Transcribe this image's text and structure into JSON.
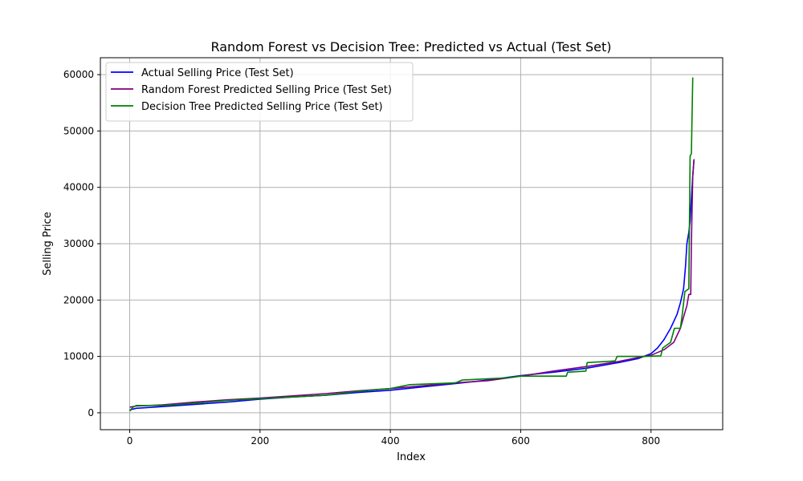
{
  "chart_data": {
    "type": "line",
    "title": "Random Forest vs Decision Tree: Predicted vs Actual (Test Set)",
    "xlabel": "Index",
    "ylabel": "Selling Price",
    "xlim": [
      -45,
      910
    ],
    "ylim": [
      -3000,
      63000
    ],
    "x_ticks": [
      0,
      200,
      400,
      600,
      800
    ],
    "y_ticks": [
      0,
      10000,
      20000,
      30000,
      40000,
      50000,
      60000
    ],
    "grid": true,
    "legend_position": "top-left",
    "series": [
      {
        "name": "Actual Selling Price (Test Set)",
        "color": "#0000ff",
        "points": [
          [
            0,
            500
          ],
          [
            10,
            800
          ],
          [
            50,
            1100
          ],
          [
            100,
            1500
          ],
          [
            150,
            1900
          ],
          [
            200,
            2400
          ],
          [
            250,
            2800
          ],
          [
            300,
            3100
          ],
          [
            350,
            3600
          ],
          [
            400,
            4000
          ],
          [
            450,
            4600
          ],
          [
            500,
            5200
          ],
          [
            550,
            5800
          ],
          [
            600,
            6600
          ],
          [
            650,
            7200
          ],
          [
            700,
            7900
          ],
          [
            750,
            8900
          ],
          [
            780,
            9600
          ],
          [
            800,
            10500
          ],
          [
            810,
            11500
          ],
          [
            820,
            13000
          ],
          [
            830,
            15000
          ],
          [
            840,
            17500
          ],
          [
            845,
            19500
          ],
          [
            850,
            22000
          ],
          [
            853,
            26000
          ],
          [
            855,
            30000
          ],
          [
            858,
            32000
          ],
          [
            860,
            34000
          ],
          [
            862,
            38000
          ],
          [
            864,
            42000
          ],
          [
            866,
            45000
          ]
        ]
      },
      {
        "name": "Random Forest Predicted Selling Price (Test Set)",
        "color": "#800080",
        "points": [
          [
            0,
            1000
          ],
          [
            10,
            1200
          ],
          [
            50,
            1400
          ],
          [
            100,
            1900
          ],
          [
            150,
            2300
          ],
          [
            200,
            2600
          ],
          [
            250,
            3000
          ],
          [
            300,
            3400
          ],
          [
            350,
            3900
          ],
          [
            400,
            4300
          ],
          [
            450,
            4800
          ],
          [
            500,
            5300
          ],
          [
            550,
            5700
          ],
          [
            600,
            6500
          ],
          [
            650,
            7400
          ],
          [
            700,
            8200
          ],
          [
            750,
            9100
          ],
          [
            780,
            9800
          ],
          [
            800,
            10200
          ],
          [
            820,
            11200
          ],
          [
            835,
            12500
          ],
          [
            845,
            15000
          ],
          [
            850,
            17000
          ],
          [
            855,
            19000
          ],
          [
            858,
            21000
          ],
          [
            861,
            21000
          ],
          [
            862,
            30000
          ],
          [
            864,
            42000
          ],
          [
            866,
            45000
          ]
        ]
      },
      {
        "name": "Decision Tree Predicted Selling Price (Test Set)",
        "color": "#008000",
        "points": [
          [
            0,
            300
          ],
          [
            5,
            1000
          ],
          [
            10,
            1300
          ],
          [
            50,
            1300
          ],
          [
            100,
            1700
          ],
          [
            150,
            2200
          ],
          [
            200,
            2500
          ],
          [
            250,
            2800
          ],
          [
            300,
            3100
          ],
          [
            350,
            3800
          ],
          [
            400,
            4300
          ],
          [
            430,
            5000
          ],
          [
            500,
            5300
          ],
          [
            510,
            5800
          ],
          [
            580,
            6200
          ],
          [
            600,
            6500
          ],
          [
            670,
            6500
          ],
          [
            672,
            7200
          ],
          [
            700,
            7400
          ],
          [
            702,
            8900
          ],
          [
            745,
            9200
          ],
          [
            748,
            10000
          ],
          [
            790,
            10000
          ],
          [
            815,
            10100
          ],
          [
            818,
            11500
          ],
          [
            830,
            12500
          ],
          [
            836,
            15000
          ],
          [
            845,
            15000
          ],
          [
            848,
            17500
          ],
          [
            852,
            21500
          ],
          [
            858,
            22000
          ],
          [
            860,
            45500
          ],
          [
            862,
            46000
          ],
          [
            864,
            59500
          ]
        ]
      }
    ]
  }
}
